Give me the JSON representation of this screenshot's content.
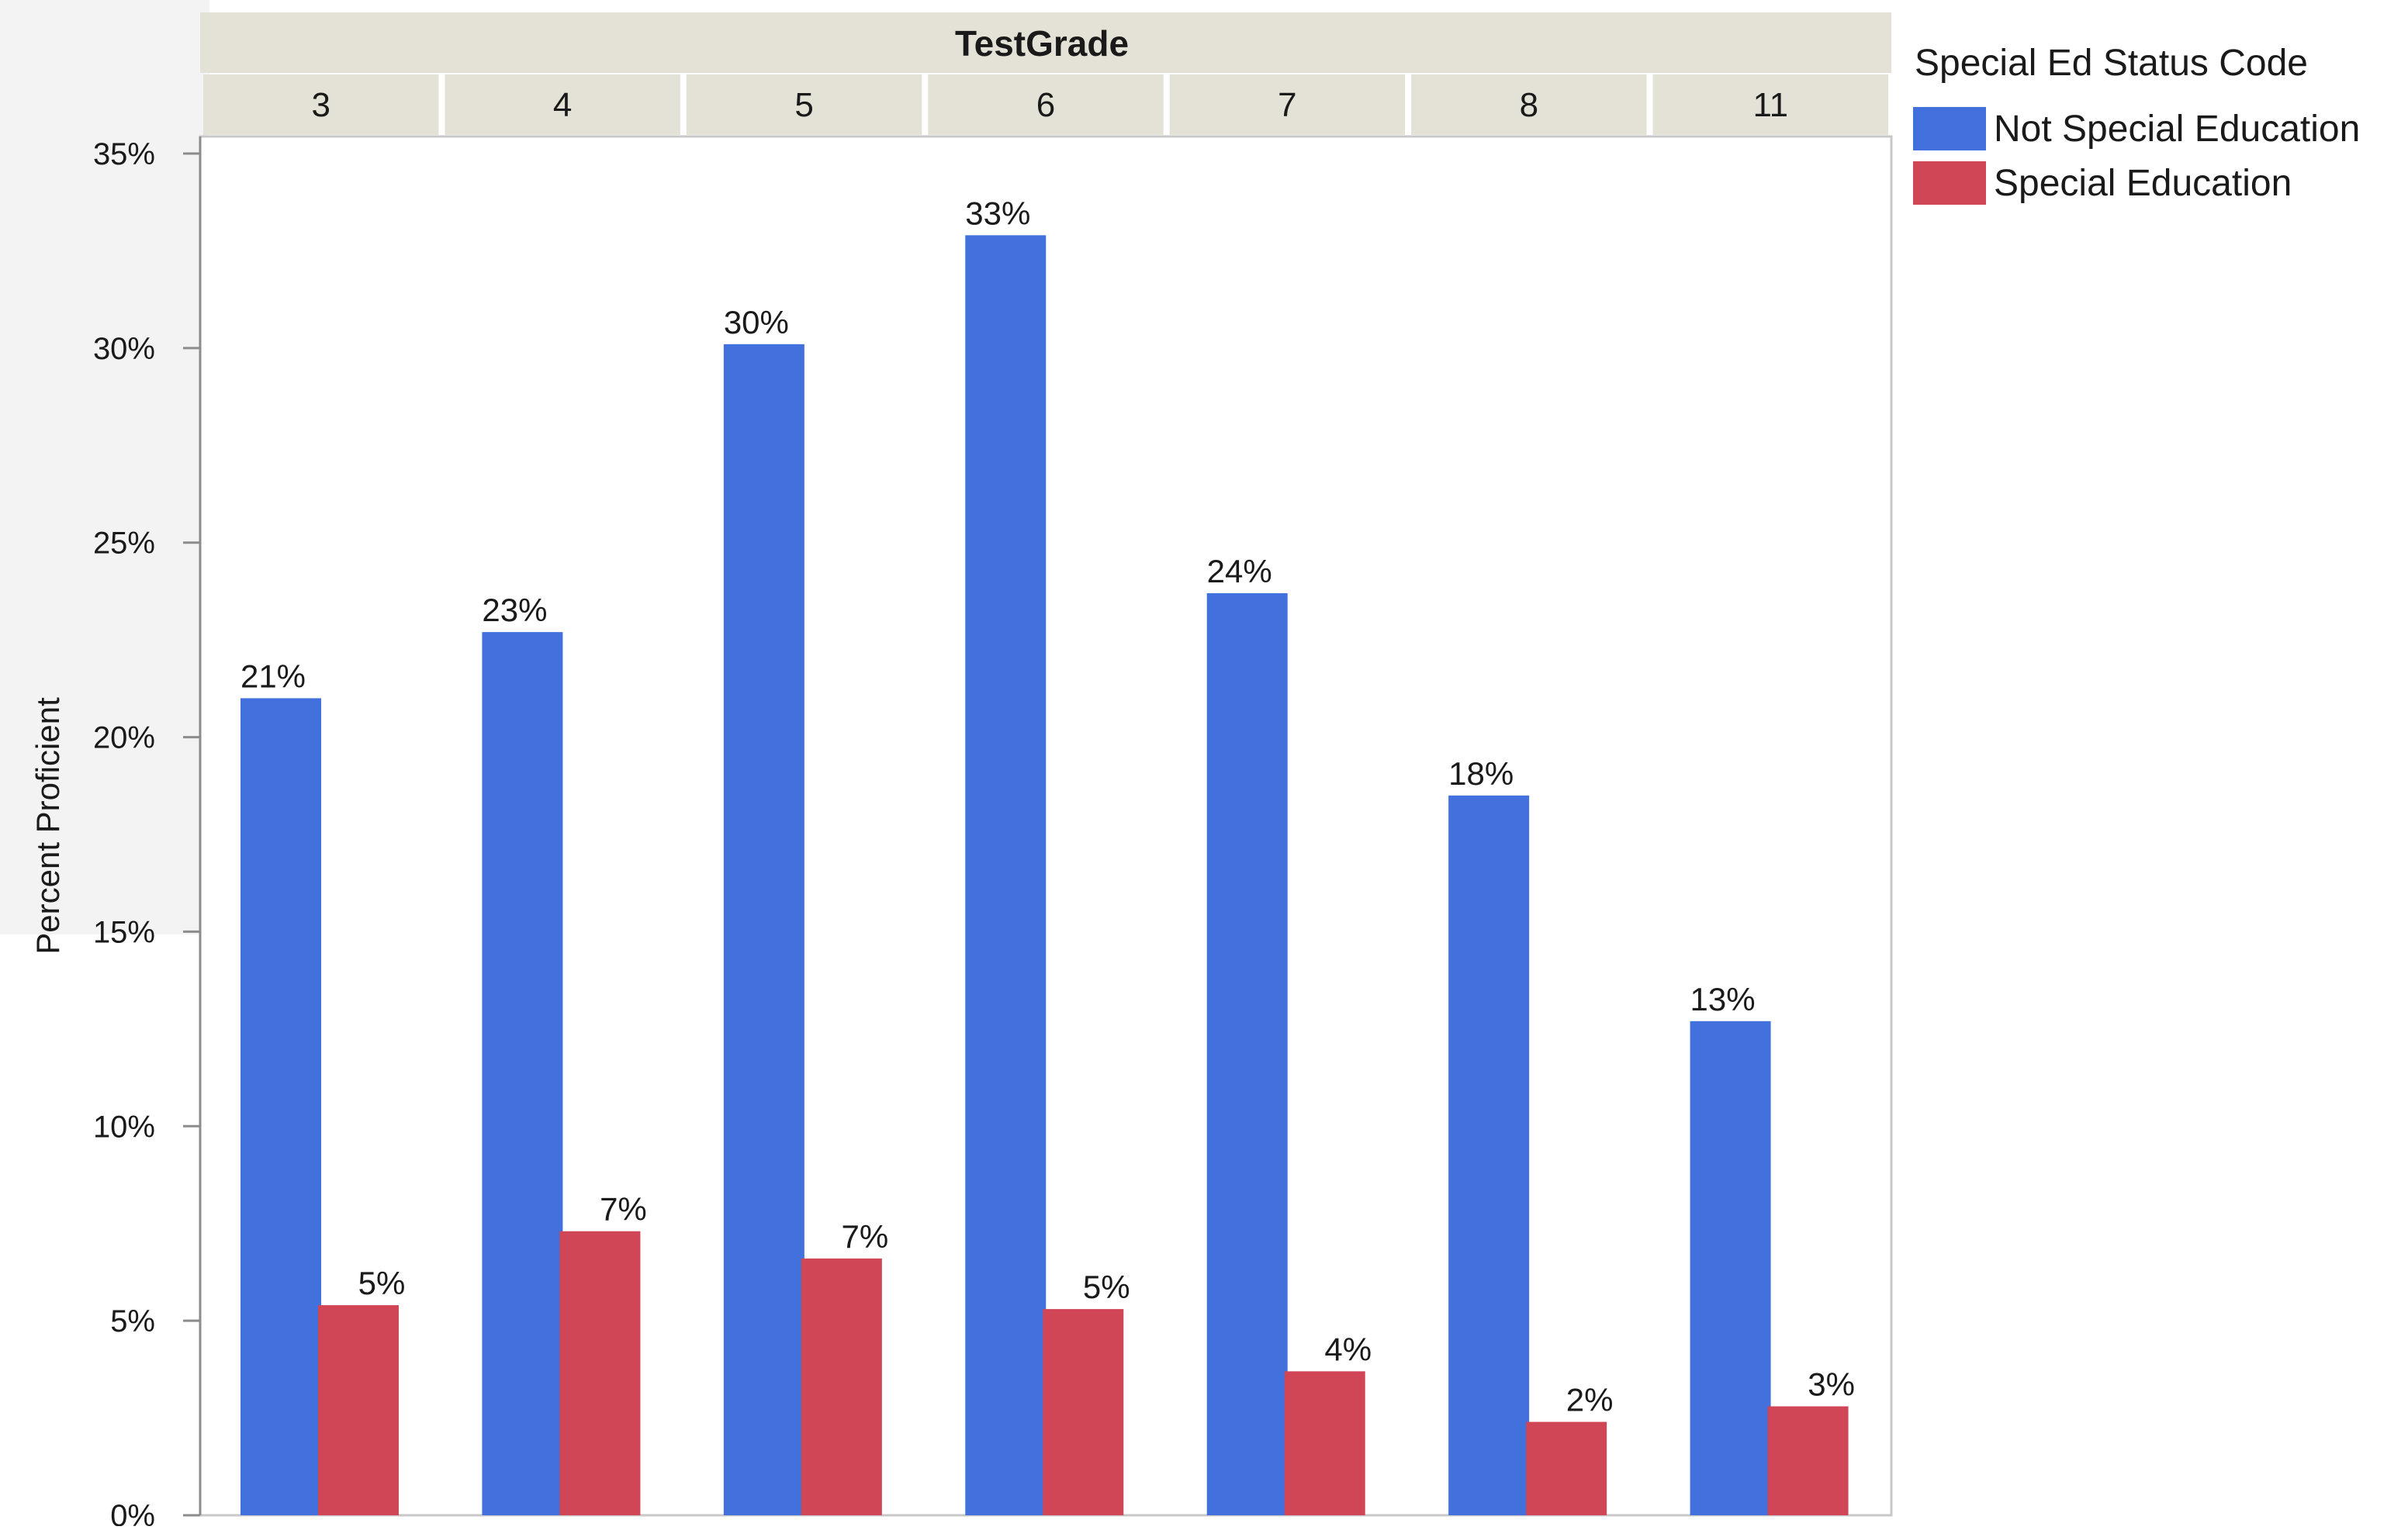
{
  "chart_data": {
    "type": "bar",
    "header_title": "TestGrade",
    "categories": [
      "3",
      "4",
      "5",
      "6",
      "7",
      "8",
      "11"
    ],
    "ylabel": "Percent Proficient",
    "ylim": [
      0,
      35
    ],
    "yticks": [
      "0%",
      "5%",
      "10%",
      "15%",
      "20%",
      "25%",
      "30%",
      "35%"
    ],
    "ytick_values": [
      0,
      5,
      10,
      15,
      20,
      25,
      30,
      35
    ],
    "legend": {
      "title": "Special Ed Status Code",
      "position": "right"
    },
    "series": [
      {
        "name": "Not Special Education",
        "color": "#4270DD",
        "values": [
          21.0,
          22.7,
          30.1,
          32.9,
          23.7,
          18.5,
          12.7
        ],
        "labels": [
          "21%",
          "23%",
          "30%",
          "33%",
          "24%",
          "18%",
          "13%"
        ]
      },
      {
        "name": "Special Education",
        "color": "#D14657",
        "values": [
          5.4,
          7.3,
          6.6,
          5.3,
          3.7,
          2.4,
          2.8
        ],
        "labels": [
          "5%",
          "7%",
          "7%",
          "5%",
          "4%",
          "2%",
          "3%"
        ]
      }
    ],
    "grid": false
  }
}
